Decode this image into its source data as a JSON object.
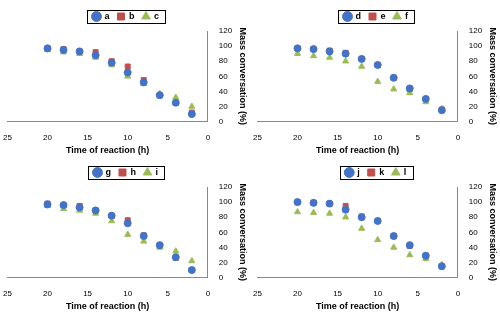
{
  "chart_data": [
    {
      "type": "scatter",
      "x_label": "Time of reaction (h)",
      "y_label": "Mass conversation (%)",
      "x": [
        20,
        18,
        16,
        14,
        12,
        10,
        8,
        6,
        4,
        2
      ],
      "xlim": [
        25,
        0
      ],
      "xticks": [
        25,
        20,
        15,
        10,
        5,
        0
      ],
      "ylim": [
        0,
        120
      ],
      "yticks": [
        0,
        20,
        40,
        60,
        80,
        100,
        120
      ],
      "grid": false,
      "legend": "top",
      "series": [
        {
          "name": "a",
          "color": "#4472c4",
          "marker": "circle",
          "values": [
            97,
            95,
            93,
            88,
            78,
            65,
            52,
            35,
            25,
            10
          ]
        },
        {
          "name": "b",
          "color": "#c0504d",
          "marker": "square",
          "values": [
            97,
            96,
            93,
            92,
            80,
            73,
            55,
            35,
            25,
            12
          ]
        },
        {
          "name": "c",
          "color": "#9bbb59",
          "marker": "triangle",
          "values": [
            95,
            92,
            90,
            85,
            75,
            60,
            50,
            37,
            32,
            20
          ]
        }
      ]
    },
    {
      "type": "scatter",
      "x_label": "Time of reaction (h)",
      "y_label": "Mass conversation (%)",
      "x": [
        20,
        18,
        16,
        14,
        12,
        10,
        8,
        6,
        4,
        2
      ],
      "xlim": [
        25,
        0
      ],
      "xticks": [
        25,
        20,
        15,
        10,
        5,
        0
      ],
      "ylim": [
        0,
        120
      ],
      "yticks": [
        0,
        20,
        40,
        60,
        80,
        100,
        120
      ],
      "grid": false,
      "legend": "top",
      "series": [
        {
          "name": "d",
          "color": "#4472c4",
          "marker": "circle",
          "values": [
            97,
            96,
            93,
            90,
            83,
            75,
            58,
            44,
            30,
            15
          ]
        },
        {
          "name": "e",
          "color": "#c0504d",
          "marker": "square",
          "values": [
            97,
            96,
            94,
            91,
            83,
            75,
            58,
            43,
            30,
            16
          ]
        },
        {
          "name": "f",
          "color": "#9bbb59",
          "marker": "triangle",
          "values": [
            90,
            87,
            85,
            80,
            73,
            53,
            43,
            38,
            26,
            17
          ]
        }
      ]
    },
    {
      "type": "scatter",
      "x_label": "Time of reaction (h)",
      "y_label": "Mass conversation (%)",
      "x": [
        20,
        18,
        16,
        14,
        12,
        10,
        8,
        6,
        4,
        2
      ],
      "xlim": [
        25,
        0
      ],
      "xticks": [
        25,
        20,
        15,
        10,
        5,
        0
      ],
      "ylim": [
        0,
        120
      ],
      "yticks": [
        0,
        20,
        40,
        60,
        80,
        100,
        120
      ],
      "grid": false,
      "legend": "top",
      "series": [
        {
          "name": "g",
          "color": "#4472c4",
          "marker": "circle",
          "values": [
            97,
            96,
            93,
            89,
            82,
            72,
            55,
            43,
            27,
            10
          ]
        },
        {
          "name": "h",
          "color": "#c0504d",
          "marker": "square",
          "values": [
            98,
            96,
            95,
            89,
            82,
            76,
            56,
            43,
            26,
            10
          ]
        },
        {
          "name": "i",
          "color": "#9bbb59",
          "marker": "triangle",
          "values": [
            95,
            91,
            89,
            85,
            75,
            57,
            48,
            40,
            35,
            22
          ]
        }
      ]
    },
    {
      "type": "scatter",
      "x_label": "Time of reaction (h)",
      "y_label": "Mass conversation (%)",
      "x": [
        20,
        18,
        16,
        14,
        12,
        10,
        8,
        6,
        4,
        2
      ],
      "xlim": [
        25,
        0
      ],
      "xticks": [
        25,
        20,
        15,
        10,
        5,
        0
      ],
      "ylim": [
        0,
        120
      ],
      "yticks": [
        0,
        20,
        40,
        60,
        80,
        100,
        120
      ],
      "grid": false,
      "legend": "top",
      "series": [
        {
          "name": "j",
          "color": "#4472c4",
          "marker": "circle",
          "values": [
            100,
            99,
            98,
            90,
            80,
            75,
            55,
            43,
            29,
            15
          ]
        },
        {
          "name": "k",
          "color": "#c0504d",
          "marker": "square",
          "values": [
            100,
            99,
            98,
            95,
            81,
            75,
            55,
            42,
            29,
            15
          ]
        },
        {
          "name": "l",
          "color": "#9bbb59",
          "marker": "triangle",
          "values": [
            87,
            86,
            85,
            80,
            65,
            50,
            40,
            30,
            25,
            17
          ]
        }
      ]
    }
  ]
}
